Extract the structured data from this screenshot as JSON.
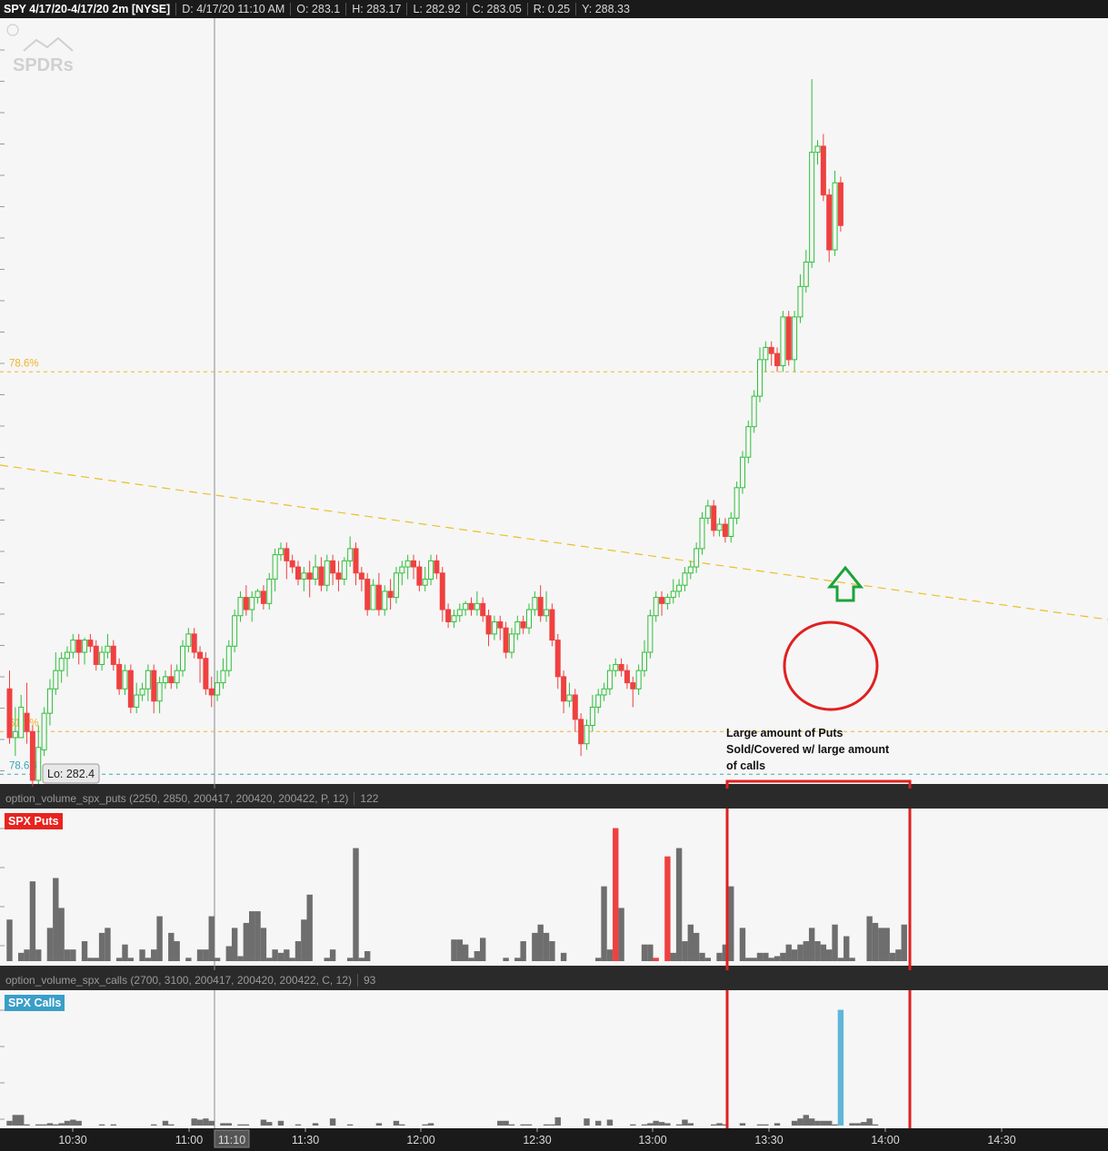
{
  "header": {
    "title": "SPY 4/17/20-4/17/20 2m [NYSE]",
    "date": "D: 4/17/20 11:10 AM",
    "open": "O: 283.1",
    "high": "H: 283.17",
    "low": "L: 282.92",
    "close": "C: 283.05",
    "range": "R: 0.25",
    "y": "Y: 288.33"
  },
  "watermark": "SPDRs",
  "colors": {
    "up": "#2fbf3a",
    "down": "#f04040",
    "fib": "#f0b429",
    "fib_teal": "#3aa7b4",
    "trendline": "#e8c02a",
    "annotation": "#e02020",
    "arrow": "#1aa33a",
    "puts_highlight": "#f04040",
    "calls_highlight": "#5fb6d8",
    "neutral_bar": "#6e6e6e"
  },
  "fib_levels": [
    {
      "label": "78.6%",
      "price": 285.5,
      "color": "#f0b429"
    },
    {
      "label": "61.8%",
      "price": 282.55,
      "color": "#f0b429"
    },
    {
      "label": "78.6%",
      "price": 282.2,
      "color": "#3aa7b4"
    }
  ],
  "low_label": "Lo: 282.4",
  "annotation_text": [
    "Large amount of Puts",
    "Sold/Covered w/ large amount",
    "of calls"
  ],
  "puts_panel": {
    "study": "option_volume_spx_puts (2250, 2850, 200417, 200420, 200422, P, 12)",
    "last": "122",
    "badge": "SPX Puts"
  },
  "calls_panel": {
    "study": "option_volume_spx_calls (2700, 3100, 200417, 200420, 200422, C, 12)",
    "last": "93",
    "badge": "SPX Calls"
  },
  "chart_data": {
    "type": "candlestick",
    "symbol": "SPY",
    "interval": "2m",
    "ylim": [
      282.12,
      288.4
    ],
    "x_ticks": [
      "10:30",
      "11:00",
      "11:10",
      "11:30",
      "12:00",
      "12:30",
      "13:00",
      "13:30",
      "14:00",
      "14:30"
    ],
    "cursor_time": "11:10",
    "candles": [
      [
        282.9,
        282.5,
        283.05,
        282.45
      ],
      [
        282.5,
        282.55,
        282.75,
        282.35
      ],
      [
        282.5,
        282.75,
        282.85,
        282.5
      ],
      [
        282.7,
        282.55,
        282.95,
        282.45
      ],
      [
        282.55,
        282.15,
        282.6,
        282.1
      ],
      [
        282.15,
        282.42,
        282.6,
        282.12
      ],
      [
        282.4,
        282.7,
        282.75,
        282.35
      ],
      [
        282.7,
        282.9,
        282.98,
        282.6
      ],
      [
        282.9,
        283.05,
        283.2,
        282.85
      ],
      [
        283.05,
        283.15,
        283.2,
        282.95
      ],
      [
        283.15,
        283.2,
        283.25,
        283.0
      ],
      [
        283.2,
        283.3,
        283.35,
        283.15
      ],
      [
        283.3,
        283.2,
        283.35,
        283.1
      ],
      [
        283.2,
        283.3,
        283.32,
        283.1
      ],
      [
        283.3,
        283.25,
        283.35,
        283.2
      ],
      [
        283.25,
        283.1,
        283.3,
        283.05
      ],
      [
        283.1,
        283.2,
        283.25,
        283.05
      ],
      [
        283.2,
        283.25,
        283.35,
        283.15
      ],
      [
        283.25,
        283.1,
        283.3,
        283.05
      ],
      [
        283.1,
        282.9,
        283.15,
        282.85
      ],
      [
        282.9,
        283.05,
        283.1,
        282.85
      ],
      [
        283.05,
        282.75,
        283.1,
        282.7
      ],
      [
        282.75,
        282.85,
        282.95,
        282.7
      ],
      [
        282.85,
        282.9,
        282.95,
        282.8
      ],
      [
        282.9,
        283.05,
        283.1,
        282.8
      ],
      [
        283.05,
        282.8,
        283.1,
        282.7
      ],
      [
        282.8,
        282.95,
        283.0,
        282.7
      ],
      [
        282.95,
        283.0,
        283.05,
        282.9
      ],
      [
        283.0,
        282.95,
        283.1,
        282.9
      ],
      [
        282.95,
        283.05,
        283.1,
        282.9
      ],
      [
        283.05,
        283.25,
        283.3,
        283.0
      ],
      [
        283.25,
        283.35,
        283.4,
        283.2
      ],
      [
        283.35,
        283.2,
        283.4,
        283.15
      ],
      [
        283.2,
        283.15,
        283.25,
        282.95
      ],
      [
        283.15,
        282.9,
        283.2,
        282.85
      ],
      [
        282.9,
        282.85,
        283.0,
        282.75
      ],
      [
        282.85,
        282.95,
        283.05,
        282.8
      ],
      [
        282.95,
        283.05,
        283.15,
        282.9
      ],
      [
        283.05,
        283.25,
        283.3,
        283.0
      ],
      [
        283.25,
        283.5,
        283.55,
        283.2
      ],
      [
        283.5,
        283.65,
        283.7,
        283.45
      ],
      [
        283.65,
        283.55,
        283.75,
        283.5
      ],
      [
        283.55,
        283.65,
        283.7,
        283.45
      ],
      [
        283.65,
        283.7,
        283.72,
        283.6
      ],
      [
        283.7,
        283.6,
        283.75,
        283.55
      ],
      [
        283.6,
        283.8,
        283.85,
        283.55
      ],
      [
        283.8,
        284.0,
        284.05,
        283.7
      ],
      [
        284.0,
        284.05,
        284.1,
        283.95
      ],
      [
        284.05,
        283.95,
        284.1,
        283.8
      ],
      [
        283.95,
        283.9,
        284.0,
        283.85
      ],
      [
        283.9,
        283.8,
        283.95,
        283.75
      ],
      [
        283.8,
        283.85,
        283.9,
        283.7
      ],
      [
        283.85,
        283.8,
        283.95,
        283.65
      ],
      [
        283.8,
        283.9,
        284.0,
        283.75
      ],
      [
        283.9,
        283.75,
        283.98,
        283.7
      ],
      [
        283.75,
        283.95,
        284.0,
        283.7
      ],
      [
        283.95,
        283.85,
        284.0,
        283.75
      ],
      [
        283.85,
        283.8,
        283.95,
        283.7
      ],
      [
        283.8,
        283.95,
        283.98,
        283.75
      ],
      [
        283.95,
        284.05,
        284.15,
        283.9
      ],
      [
        284.05,
        283.85,
        284.1,
        283.75
      ],
      [
        283.85,
        283.8,
        283.9,
        283.7
      ],
      [
        283.8,
        283.55,
        283.85,
        283.5
      ],
      [
        283.55,
        283.75,
        283.8,
        283.55
      ],
      [
        283.75,
        283.55,
        283.85,
        283.5
      ],
      [
        283.55,
        283.7,
        283.75,
        283.5
      ],
      [
        283.7,
        283.65,
        283.8,
        283.55
      ],
      [
        283.65,
        283.85,
        283.9,
        283.6
      ],
      [
        283.85,
        283.9,
        283.95,
        283.75
      ],
      [
        283.9,
        283.95,
        284.0,
        283.8
      ],
      [
        283.95,
        283.9,
        284.0,
        283.8
      ],
      [
        283.9,
        283.75,
        283.95,
        283.7
      ],
      [
        283.75,
        283.8,
        283.9,
        283.7
      ],
      [
        283.8,
        283.95,
        284.0,
        283.75
      ],
      [
        283.95,
        283.85,
        284.0,
        283.8
      ],
      [
        283.85,
        283.55,
        283.9,
        283.45
      ],
      [
        283.55,
        283.45,
        283.6,
        283.4
      ],
      [
        283.45,
        283.5,
        283.55,
        283.4
      ],
      [
        283.5,
        283.55,
        283.6,
        283.45
      ],
      [
        283.55,
        283.6,
        283.62,
        283.5
      ],
      [
        283.6,
        283.55,
        283.65,
        283.5
      ],
      [
        283.55,
        283.6,
        283.7,
        283.5
      ],
      [
        283.6,
        283.5,
        283.65,
        283.45
      ],
      [
        283.5,
        283.35,
        283.55,
        283.25
      ],
      [
        283.35,
        283.45,
        283.5,
        283.3
      ],
      [
        283.45,
        283.4,
        283.5,
        283.3
      ],
      [
        283.4,
        283.2,
        283.45,
        283.15
      ],
      [
        283.2,
        283.35,
        283.4,
        283.15
      ],
      [
        283.35,
        283.45,
        283.5,
        283.3
      ],
      [
        283.45,
        283.4,
        283.5,
        283.35
      ],
      [
        283.4,
        283.55,
        283.6,
        283.35
      ],
      [
        283.55,
        283.65,
        283.7,
        283.5
      ],
      [
        283.65,
        283.5,
        283.75,
        283.45
      ],
      [
        283.5,
        283.55,
        283.7,
        283.45
      ],
      [
        283.55,
        283.3,
        283.6,
        283.25
      ],
      [
        283.3,
        283.0,
        283.35,
        282.9
      ],
      [
        283.0,
        282.8,
        283.05,
        282.7
      ],
      [
        282.8,
        282.85,
        282.95,
        282.75
      ],
      [
        282.85,
        282.65,
        282.9,
        282.55
      ],
      [
        282.65,
        282.45,
        282.7,
        282.35
      ],
      [
        282.45,
        282.6,
        282.65,
        282.4
      ],
      [
        282.6,
        282.75,
        282.85,
        282.55
      ],
      [
        282.75,
        282.85,
        282.9,
        282.7
      ],
      [
        282.85,
        282.9,
        282.95,
        282.8
      ],
      [
        282.9,
        283.05,
        283.1,
        282.85
      ],
      [
        283.05,
        283.1,
        283.15,
        283.0
      ],
      [
        283.1,
        283.05,
        283.15,
        283.0
      ],
      [
        283.05,
        282.95,
        283.1,
        282.9
      ],
      [
        282.95,
        282.9,
        283.0,
        282.75
      ],
      [
        282.9,
        283.05,
        283.1,
        282.85
      ],
      [
        283.05,
        283.2,
        283.3,
        283.0
      ],
      [
        283.2,
        283.5,
        283.55,
        283.15
      ],
      [
        283.5,
        283.65,
        283.7,
        283.45
      ],
      [
        283.65,
        283.6,
        283.7,
        283.5
      ],
      [
        283.6,
        283.65,
        283.68,
        283.55
      ],
      [
        283.65,
        283.7,
        283.8,
        283.6
      ],
      [
        283.7,
        283.75,
        283.8,
        283.65
      ],
      [
        283.75,
        283.85,
        283.9,
        283.7
      ],
      [
        283.85,
        283.9,
        283.95,
        283.8
      ],
      [
        283.9,
        284.05,
        284.1,
        283.85
      ],
      [
        284.05,
        284.3,
        284.35,
        284.0
      ],
      [
        284.3,
        284.4,
        284.45,
        284.25
      ],
      [
        284.4,
        284.2,
        284.45,
        284.15
      ],
      [
        284.2,
        284.25,
        284.3,
        284.15
      ],
      [
        284.25,
        284.15,
        284.3,
        284.1
      ],
      [
        284.15,
        284.3,
        284.35,
        284.1
      ],
      [
        284.3,
        284.55,
        284.6,
        284.25
      ],
      [
        284.55,
        284.8,
        284.85,
        284.5
      ],
      [
        284.8,
        285.05,
        285.1,
        284.75
      ],
      [
        285.05,
        285.3,
        285.35,
        285.0
      ],
      [
        285.3,
        285.6,
        285.7,
        285.25
      ],
      [
        285.6,
        285.7,
        285.75,
        285.5
      ],
      [
        285.7,
        285.65,
        285.75,
        285.55
      ],
      [
        285.65,
        285.55,
        285.7,
        285.5
      ],
      [
        285.55,
        285.95,
        286.0,
        285.5
      ],
      [
        285.95,
        285.6,
        286.0,
        285.55
      ],
      [
        285.6,
        285.95,
        286.0,
        285.5
      ],
      [
        285.95,
        286.2,
        286.3,
        285.9
      ],
      [
        286.2,
        286.4,
        286.5,
        286.15
      ],
      [
        286.4,
        287.3,
        287.9,
        286.35
      ],
      [
        287.3,
        287.35,
        287.4,
        287.2
      ],
      [
        287.35,
        286.95,
        287.45,
        286.9
      ],
      [
        286.95,
        286.5,
        287.0,
        286.4
      ],
      [
        286.5,
        287.05,
        287.15,
        286.45
      ],
      [
        287.05,
        286.7,
        287.1,
        286.65
      ]
    ],
    "puts_volume": [
      0.25,
      0,
      0.05,
      0.07,
      0.48,
      0.07,
      0,
      0.2,
      0.5,
      0.32,
      0.07,
      0.07,
      0,
      0.12,
      0.02,
      0.02,
      0.17,
      0.2,
      0,
      0.02,
      0.1,
      0.02,
      0,
      0.07,
      0.02,
      0.07,
      0.27,
      0,
      0.17,
      0.12,
      0,
      0.02,
      0,
      0.07,
      0.07,
      0.27,
      0.02,
      0,
      0.09,
      0.2,
      0.03,
      0.23,
      0.3,
      0.3,
      0.2,
      0.02,
      0.07,
      0.05,
      0.07,
      0.02,
      0.12,
      0.25,
      0.4,
      0,
      0,
      0.02,
      0.07,
      0,
      0,
      0.02,
      0.68,
      0.02,
      0.06,
      0,
      0,
      0,
      0,
      0,
      0,
      0,
      0,
      0,
      0,
      0,
      0,
      0,
      0,
      0.13,
      0.13,
      0.1,
      0.02,
      0.06,
      0.14,
      0,
      0,
      0,
      0.02,
      0,
      0.02,
      0.12,
      0,
      0.17,
      0.22,
      0.17,
      0.12,
      0,
      0.05,
      0,
      0,
      0,
      0,
      0,
      0.02,
      0.45,
      0.07,
      0.8,
      0.32,
      0,
      0,
      0,
      0.1,
      0.1,
      0.02,
      0,
      0.63,
      0.05,
      0.68,
      0.12,
      0.22,
      0.17,
      0.05,
      0.02,
      0,
      0.05,
      0.1,
      0.45,
      0,
      0.2,
      0.02,
      0.02,
      0.05,
      0.05,
      0.02,
      0.03,
      0.05,
      0.1,
      0.07,
      0.1,
      0.12,
      0.2,
      0.12,
      0.1,
      0.07,
      0.22,
      0.02,
      0.15,
      0.02,
      0,
      0,
      0.27,
      0.23,
      0.2,
      0.2,
      0.05,
      0.07,
      0.22
    ],
    "calls_volume": [
      0.04,
      0.09,
      0.09,
      0.01,
      0,
      0.01,
      0.01,
      0.02,
      0.01,
      0.02,
      0.04,
      0.05,
      0.04,
      0,
      0,
      0,
      0.01,
      0,
      0.01,
      0,
      0,
      0,
      0,
      0,
      0,
      0.01,
      0,
      0.04,
      0.01,
      0,
      0,
      0,
      0.06,
      0.05,
      0.06,
      0.04,
      0,
      0.02,
      0.02,
      0,
      0.01,
      0.01,
      0,
      0,
      0.05,
      0.03,
      0,
      0.04,
      0,
      0,
      0.01,
      0,
      0,
      0.02,
      0,
      0,
      0.06,
      0,
      0,
      0.01,
      0,
      0,
      0,
      0,
      0.02,
      0,
      0,
      0.04,
      0.01,
      0,
      0,
      0,
      0.01,
      0.02,
      0,
      0,
      0,
      0,
      0,
      0,
      0,
      0,
      0,
      0,
      0,
      0.04,
      0.04,
      0.01,
      0,
      0.01,
      0.01,
      0,
      0,
      0.01,
      0.01,
      0.07,
      0,
      0,
      0,
      0,
      0.06,
      0,
      0.04,
      0,
      0.05,
      0,
      0,
      0,
      0.01,
      0,
      0.01,
      0.02,
      0.04,
      0.03,
      0.02,
      0,
      0.01,
      0.05,
      0.02,
      0,
      0,
      0,
      0.01,
      0.02,
      0.01,
      0,
      0,
      0.02,
      0,
      0,
      0.01,
      0.01,
      0,
      0.02,
      0,
      0,
      0.04,
      0.06,
      0.09,
      0.06,
      0.04,
      0.04,
      0.04,
      0.01,
      0.98,
      0,
      0.02,
      0.02,
      0.03,
      0.06,
      0.01
    ],
    "puts_highlight_index": [
      71,
      105,
      112,
      114
    ],
    "calls_highlight_index": [
      109,
      144
    ]
  }
}
